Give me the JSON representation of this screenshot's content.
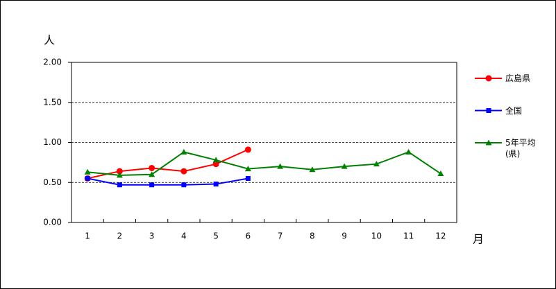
{
  "chart_data": {
    "type": "line",
    "y_unit_label": "人",
    "x_unit_label": "月",
    "categories": [
      "1",
      "2",
      "3",
      "4",
      "5",
      "6",
      "7",
      "8",
      "9",
      "10",
      "11",
      "12"
    ],
    "series": [
      {
        "name": "広島県",
        "color": "#ff0000",
        "marker": "circle",
        "values": [
          0.55,
          0.64,
          0.68,
          0.64,
          0.73,
          0.91,
          null,
          null,
          null,
          null,
          null,
          null
        ]
      },
      {
        "name": "全国",
        "color": "#0000ff",
        "marker": "square",
        "values": [
          0.55,
          0.47,
          0.47,
          0.47,
          0.48,
          0.55,
          null,
          null,
          null,
          null,
          null,
          null
        ]
      },
      {
        "name": "5年平均\n(県)",
        "color": "#008000",
        "marker": "triangle",
        "values": [
          0.63,
          0.59,
          0.6,
          0.88,
          0.78,
          0.67,
          0.7,
          0.66,
          0.7,
          0.73,
          0.88,
          0.61
        ]
      }
    ],
    "ylim": [
      0,
      2
    ],
    "yticks": [
      {
        "value": 0,
        "label": "0.00"
      },
      {
        "value": 0.5,
        "label": "0.50"
      },
      {
        "value": 1,
        "label": "1.00"
      },
      {
        "value": 1.5,
        "label": "1.50"
      },
      {
        "value": 2,
        "label": "2.00"
      }
    ],
    "grid": true,
    "legend": "right"
  }
}
